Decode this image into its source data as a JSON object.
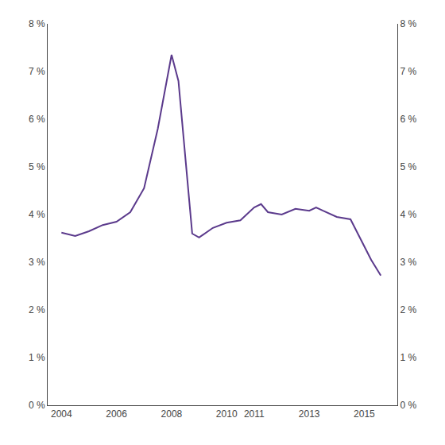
{
  "chart_data": {
    "type": "line",
    "x": [
      2004.0,
      2004.5,
      2005.0,
      2005.5,
      2006.0,
      2006.5,
      2007.0,
      2007.5,
      2008.0,
      2008.25,
      2008.75,
      2009.0,
      2009.5,
      2010.0,
      2010.5,
      2011.0,
      2011.25,
      2011.5,
      2012.0,
      2012.5,
      2013.0,
      2013.25,
      2013.5,
      2014.0,
      2014.5,
      2015.0,
      2015.25,
      2015.6
    ],
    "values": [
      3.62,
      3.55,
      3.65,
      3.78,
      3.85,
      4.05,
      4.55,
      5.8,
      7.35,
      6.8,
      3.6,
      3.52,
      3.72,
      3.83,
      3.88,
      4.15,
      4.22,
      4.05,
      4.0,
      4.12,
      4.08,
      4.15,
      4.08,
      3.95,
      3.9,
      3.35,
      3.05,
      2.72
    ],
    "color": "#5b3a8c",
    "xlim": [
      2003.5,
      2016.2
    ],
    "xticks": [
      2004,
      2006,
      2008,
      2010,
      2011,
      2013,
      2015
    ],
    "ylim": [
      0,
      8
    ],
    "yticks": [
      {
        "value": 0,
        "label": "0 %"
      },
      {
        "value": 1,
        "label": "1 %"
      },
      {
        "value": 2,
        "label": "2 %"
      },
      {
        "value": 3,
        "label": "3 %"
      },
      {
        "value": 4,
        "label": "4 %"
      },
      {
        "value": 5,
        "label": "5 %"
      },
      {
        "value": 6,
        "label": "6 %"
      },
      {
        "value": 7,
        "label": "7 %"
      },
      {
        "value": 8,
        "label": "8 %"
      }
    ],
    "y2lim": [
      0,
      8
    ],
    "y2ticks": [
      {
        "value": 0,
        "label": "0 %"
      },
      {
        "value": 1,
        "label": "1 %"
      },
      {
        "value": 2,
        "label": "2 %"
      },
      {
        "value": 3,
        "label": "3 %"
      },
      {
        "value": 4,
        "label": "4 %"
      },
      {
        "value": 5,
        "label": "5 %"
      },
      {
        "value": 6,
        "label": "6 %"
      },
      {
        "value": 7,
        "label": "7 %"
      },
      {
        "value": 8,
        "label": "8 %"
      }
    ],
    "grid": false
  }
}
